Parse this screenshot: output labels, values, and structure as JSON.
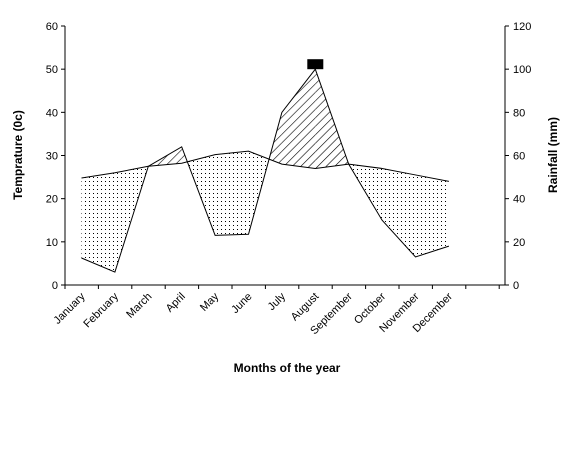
{
  "chart_data": {
    "type": "line",
    "title": "",
    "xlabel": "Months of the year",
    "ylabel": "Temprature (0c)",
    "y2label": "Rainfall (mm)",
    "categories": [
      "January",
      "February",
      "March",
      "April",
      "May",
      "June",
      "July",
      "August",
      "September",
      "October",
      "November",
      "December"
    ],
    "ylim": [
      0,
      60
    ],
    "y2lim": [
      0,
      120
    ],
    "yticks": [
      0,
      10,
      20,
      30,
      40,
      50,
      60
    ],
    "y2ticks": [
      0,
      20,
      40,
      60,
      80,
      100,
      120
    ],
    "series": [
      {
        "axis": "left",
        "values": [
          24.8,
          26,
          27.5,
          28.2,
          30.2,
          31,
          28,
          27,
          28,
          27,
          25.5,
          24
        ]
      },
      {
        "axis": "right",
        "values": [
          12.5,
          6,
          55,
          64,
          23,
          23.5,
          80,
          100,
          56,
          30,
          13,
          18
        ]
      }
    ],
    "shading": {
      "rain_above_temp": "diagonal-hatch",
      "rain_below_temp": "dots",
      "rain_above_100mm": "solid-black"
    },
    "grid": false,
    "legend": "none",
    "colors": {
      "line": "#000000",
      "black_fill": "#000000",
      "background": "#ffffff"
    }
  }
}
